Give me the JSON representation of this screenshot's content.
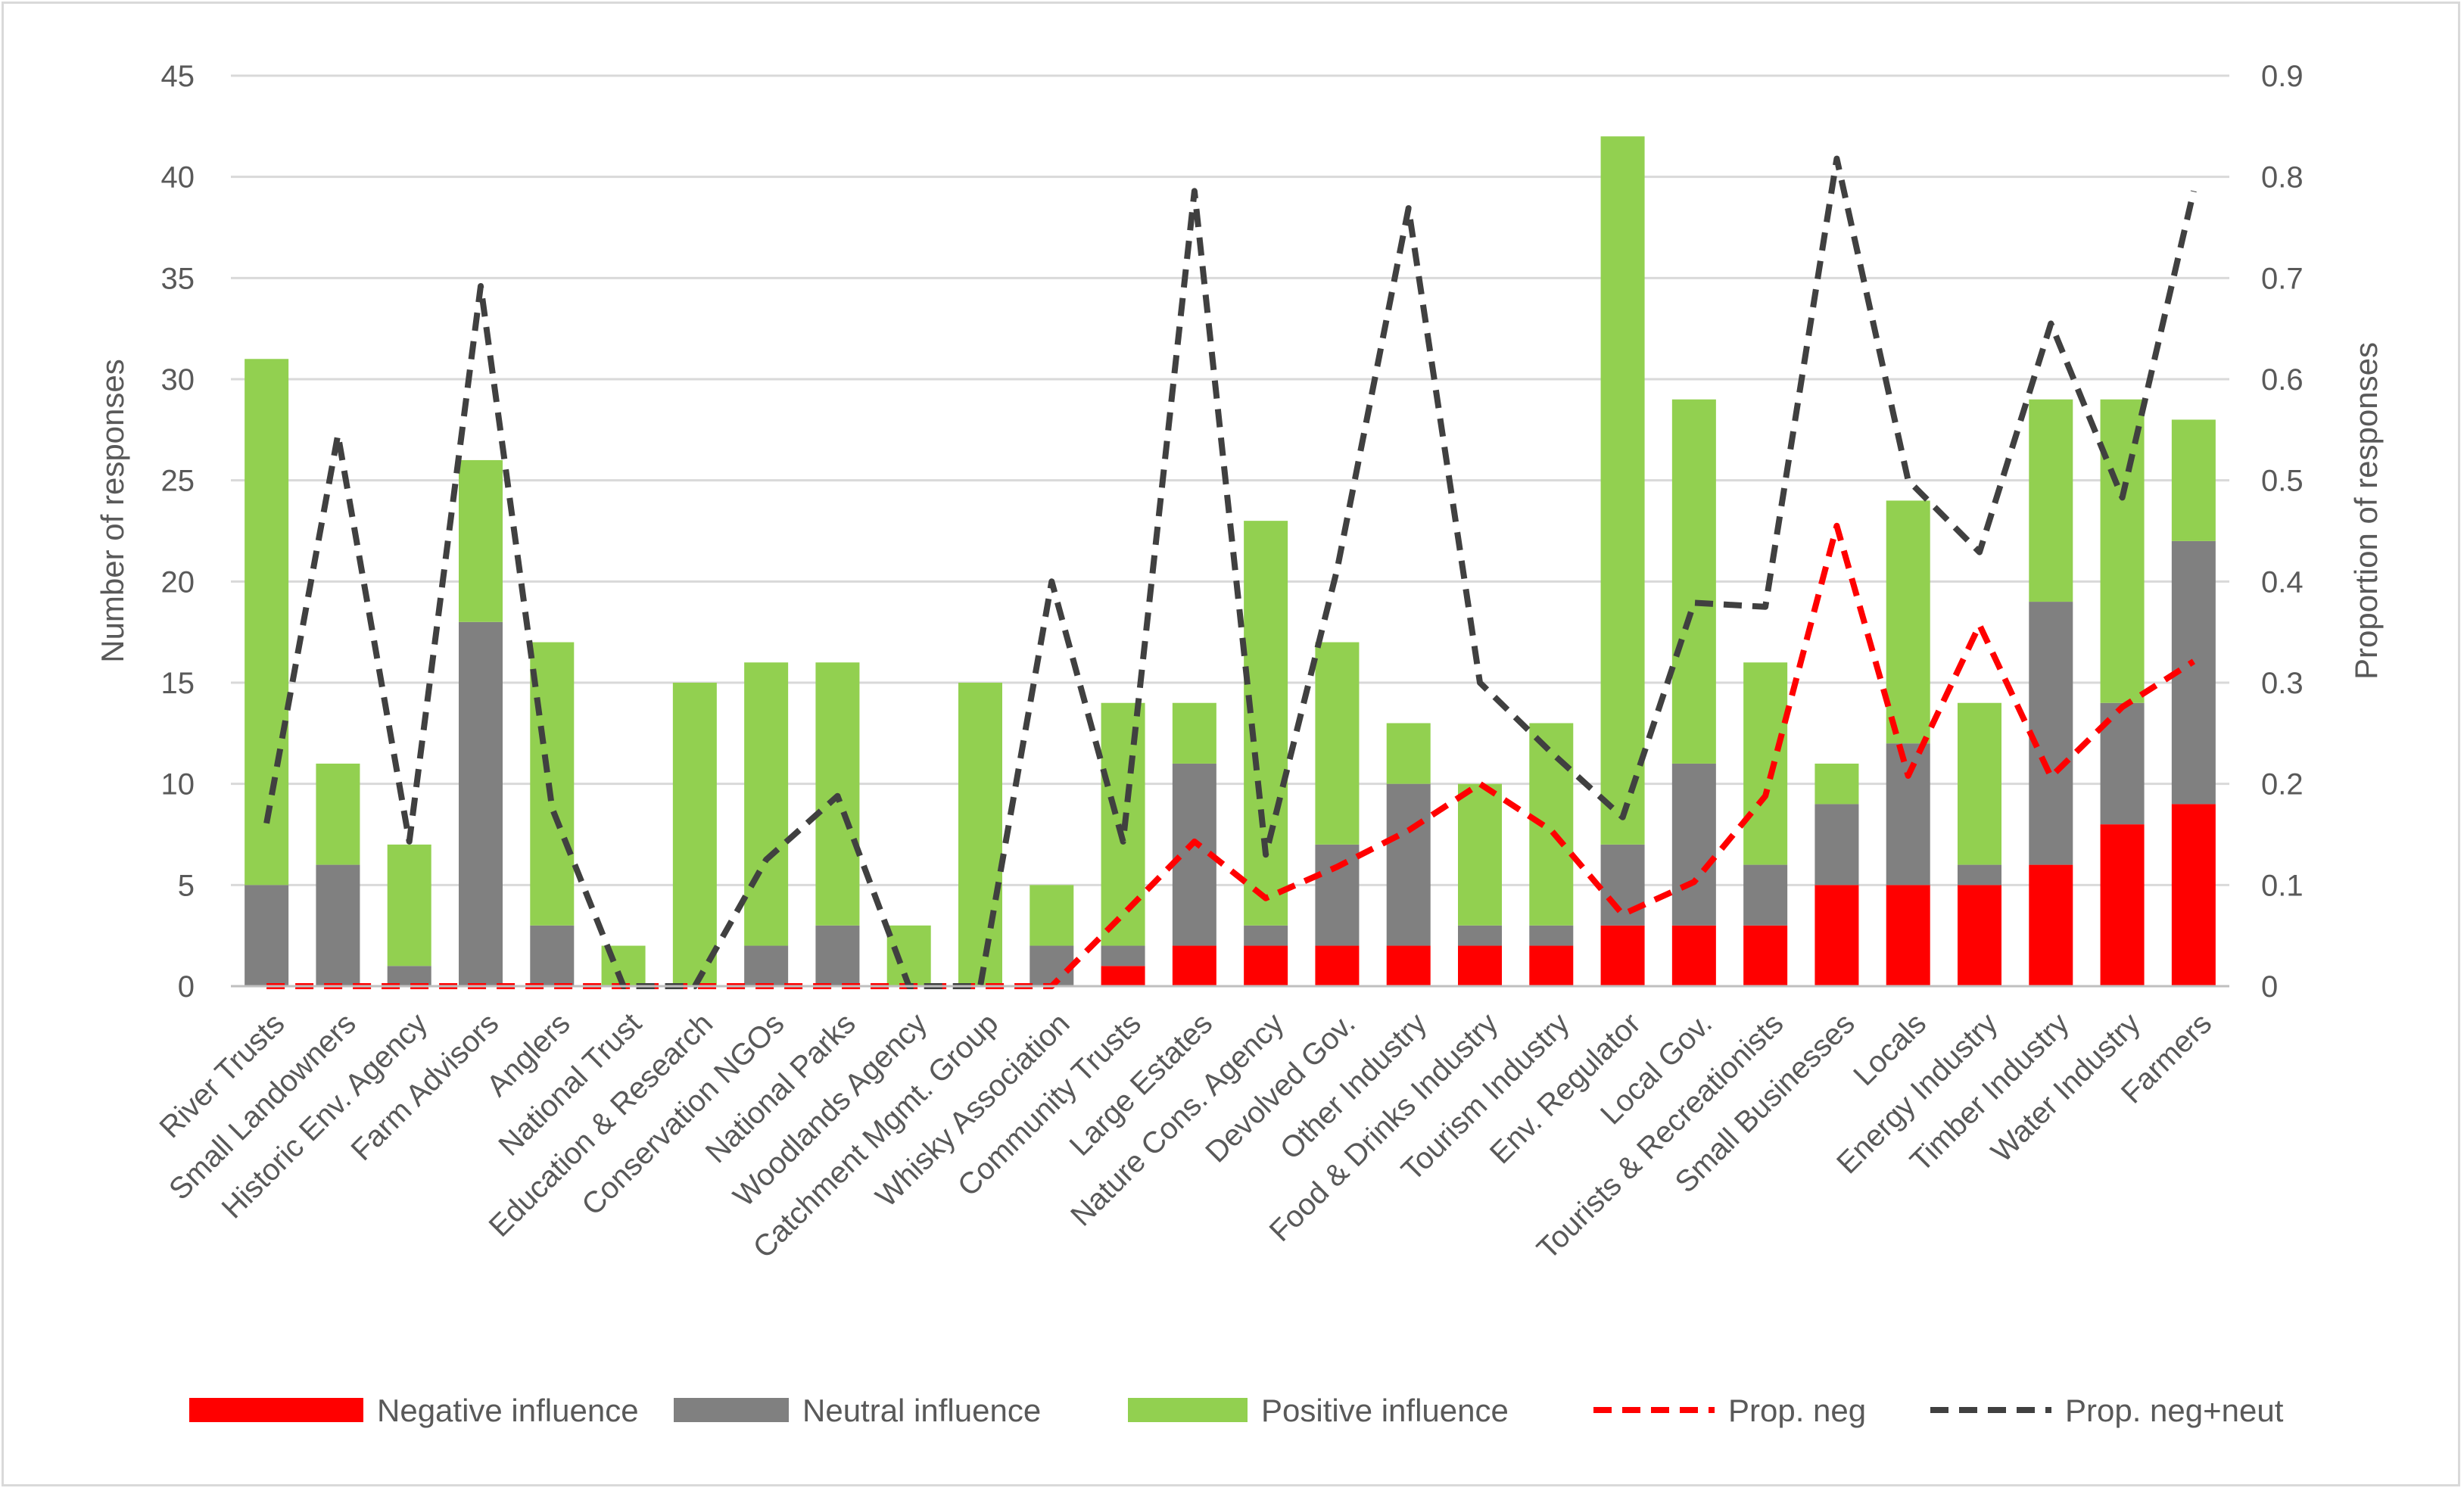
{
  "chart_data": {
    "type": "bar",
    "stacked": true,
    "title": "",
    "ylabel": "Number of responses",
    "y2label": "Proportion of responses",
    "ylim": [
      0,
      45
    ],
    "y2lim": [
      0,
      0.9
    ],
    "yticks": [
      "0",
      "5",
      "10",
      "15",
      "20",
      "25",
      "30",
      "35",
      "40",
      "45"
    ],
    "y2ticks": [
      "0",
      "0.1",
      "0.2",
      "0.3",
      "0.4",
      "0.5",
      "0.6",
      "0.7",
      "0.8",
      "0.9"
    ],
    "grid": true,
    "legend_position": "bottom",
    "categories": [
      "River Trusts",
      "Small Landowners",
      "Historic Env. Agency",
      "Farm Advisors",
      "Anglers",
      "National Trust",
      "Education & Research",
      "Conservation NGOs",
      "National Parks",
      "Woodlands Agency",
      "Catchment Mgmt. Group",
      "Whisky Association",
      "Community Trusts",
      "Large Estates",
      "Nature Cons. Agency",
      "Devolved Gov.",
      "Other Industry",
      "Food & Drinks Industry",
      "Tourism  Industry",
      "Env. Regulator",
      "Local Gov.",
      "Tourists & Recreationists",
      "Small Businesses",
      "Locals",
      "Energy Industry",
      "Timber Industry",
      "Water Industry",
      "Farmers"
    ],
    "series": [
      {
        "name": "Negative influence",
        "kind": "bar",
        "color": "#ff0000",
        "values": [
          0,
          0,
          0,
          0,
          0,
          0,
          0,
          0,
          0,
          0,
          0,
          0,
          1,
          2,
          2,
          2,
          2,
          2,
          2,
          3,
          3,
          3,
          5,
          5,
          5,
          6,
          8,
          9
        ]
      },
      {
        "name": "Neutral influence",
        "kind": "bar",
        "color": "#808080",
        "values": [
          5,
          6,
          1,
          18,
          3,
          0,
          0,
          2,
          3,
          0,
          0,
          2,
          1,
          9,
          1,
          5,
          8,
          1,
          1,
          4,
          8,
          3,
          4,
          7,
          1,
          13,
          6,
          13
        ]
      },
      {
        "name": "Positive influence",
        "kind": "bar",
        "color": "#92d050",
        "values": [
          26,
          5,
          6,
          8,
          14,
          2,
          15,
          14,
          13,
          3,
          15,
          3,
          12,
          3,
          20,
          10,
          3,
          7,
          10,
          35,
          18,
          10,
          2,
          12,
          8,
          10,
          15,
          6
        ]
      },
      {
        "name": "Prop. neg",
        "kind": "line",
        "axis": "y2",
        "color": "#ff0000",
        "dash": "dashed",
        "values": [
          0,
          0,
          0,
          0,
          0,
          0,
          0,
          0,
          0,
          0,
          0,
          0,
          0.071,
          0.143,
          0.087,
          0.118,
          0.154,
          0.2,
          0.154,
          0.071,
          0.103,
          0.188,
          0.455,
          0.208,
          0.357,
          0.207,
          0.276,
          0.321
        ]
      },
      {
        "name": "Prop. neg+neut",
        "kind": "line",
        "axis": "y2",
        "color": "#404040",
        "dash": "dashed",
        "values": [
          0.161,
          0.545,
          0.143,
          0.692,
          0.176,
          0,
          0,
          0.125,
          0.188,
          0,
          0,
          0.4,
          0.143,
          0.786,
          0.13,
          0.412,
          0.769,
          0.3,
          0.231,
          0.167,
          0.379,
          0.375,
          0.818,
          0.5,
          0.429,
          0.655,
          0.483,
          0.786
        ]
      }
    ]
  }
}
